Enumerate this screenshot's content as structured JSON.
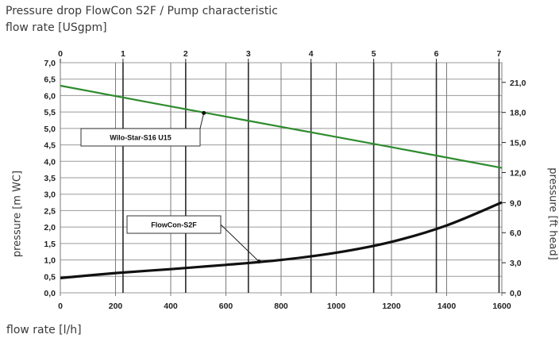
{
  "chart_data": {
    "type": "line",
    "title": "Pressure drop FlowCon S2F / Pump characteristic",
    "x_top_label": "flow rate [USgpm]",
    "x_bottom_label": "flow rate [l/h]",
    "y_left_label": "pressure [m WC]",
    "y_right_label": "pressure [ft head]",
    "xlim": [
      0,
      1600
    ],
    "ylim": [
      0,
      7.0
    ],
    "x_bottom_ticks": [
      "0",
      "200",
      "400",
      "600",
      "800",
      "1000",
      "1200",
      "1400",
      "1600"
    ],
    "x_top_ticks": [
      "0",
      "1",
      "2",
      "3",
      "4",
      "5",
      "6",
      "7"
    ],
    "y_left_ticks": [
      "0,0",
      "0,5",
      "1,0",
      "1,5",
      "2,0",
      "2,5",
      "3,0",
      "3,5",
      "4,0",
      "4,5",
      "5,0",
      "5,5",
      "6,0",
      "6,5",
      "7,0"
    ],
    "y_right_ticks": [
      "0,0",
      "3,0",
      "6,0",
      "9,0",
      "12,0",
      "15,0",
      "18,0",
      "21,0"
    ],
    "grid": true,
    "series": [
      {
        "name": "Wilo-Star-S16 U15",
        "color": "#2e8b2e",
        "x": [
          0,
          400,
          800,
          1200,
          1600
        ],
        "y": [
          6.3,
          5.67,
          5.05,
          4.43,
          3.8
        ]
      },
      {
        "name": "FlowCon-S2F",
        "color": "#111111",
        "x": [
          0,
          200,
          400,
          600,
          800,
          1000,
          1200,
          1400,
          1600
        ],
        "y": [
          0.45,
          0.6,
          0.72,
          0.85,
          1.0,
          1.22,
          1.55,
          2.05,
          2.75
        ]
      }
    ],
    "annotations": [
      {
        "text": "Wilo-Star-S16 U15",
        "point": [
          520,
          5.47
        ],
        "anchor": "left"
      },
      {
        "text": "FlowCon-S2F",
        "point": [
          720,
          0.95
        ],
        "anchor": "left"
      }
    ]
  }
}
